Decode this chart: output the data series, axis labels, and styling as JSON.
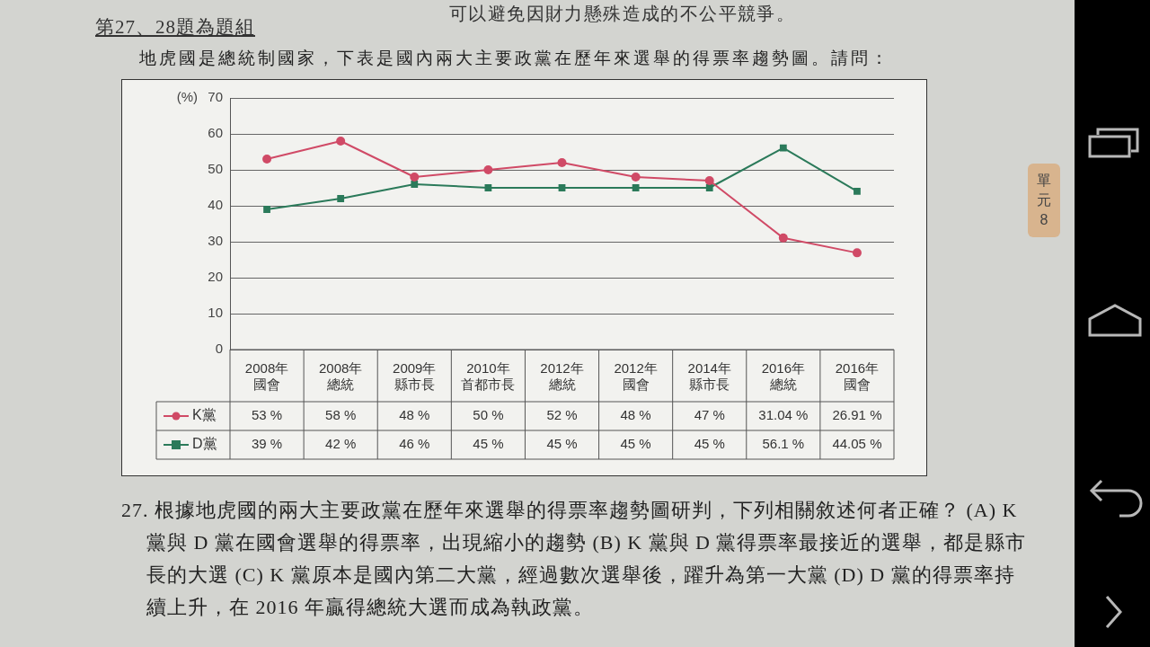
{
  "chart_data": {
    "type": "line",
    "title": "地虎國是總統制國家，下表是國內兩大主要政黨在歷年來選舉的得票率趨勢圖。請問：",
    "ylabel": "(%)",
    "categories": [
      "2008年國會",
      "2008年總統",
      "2009年縣市長",
      "2010年首都市長",
      "2012年總統",
      "2012年國會",
      "2014年縣市長",
      "2016年總統",
      "2016年國會"
    ],
    "series": [
      {
        "name": "K黨",
        "color": "#d04a66",
        "marker": "circle",
        "values": [
          53,
          58,
          48,
          50,
          52,
          48,
          47,
          31.04,
          26.91
        ],
        "value_labels": [
          "53 %",
          "58 %",
          "48 %",
          "50 %",
          "52 %",
          "48 %",
          "47 %",
          "31.04 %",
          "26.91 %"
        ]
      },
      {
        "name": "D黨",
        "color": "#2b7a5a",
        "marker": "square",
        "values": [
          39,
          42,
          46,
          45,
          45,
          45,
          45,
          56.1,
          44.05
        ],
        "value_labels": [
          "39 %",
          "42 %",
          "46 %",
          "45 %",
          "45 %",
          "45 %",
          "45 %",
          "56.1 %",
          "44.05 %"
        ]
      }
    ],
    "ylim": [
      0,
      70
    ],
    "yticks": [
      0,
      10,
      20,
      30,
      40,
      50,
      60,
      70
    ],
    "grid": "y",
    "legend": "bottom left",
    "annotations": [
      "可以避免因財力懸殊造成的不公平競爭。",
      "第27、28題為題組",
      "27. 根據地虎國的兩大主要政黨在歷年來選舉的得票率趨勢圖研判，下列相關敘述何者正確？ (A) K 黨與 D 黨在國會選舉的得票率，出現縮小的趨勢 (B) K 黨與 D 黨得票率最接近的選舉，都是縣市長的大選 (C) K 黨原本是國內第二大黨，經過數次選舉後，躍升為第一大黨 (D) D 黨的得票率持續上升，在 2016 年贏得總統大選而成為執政黨。",
      "單元8"
    ]
  }
}
